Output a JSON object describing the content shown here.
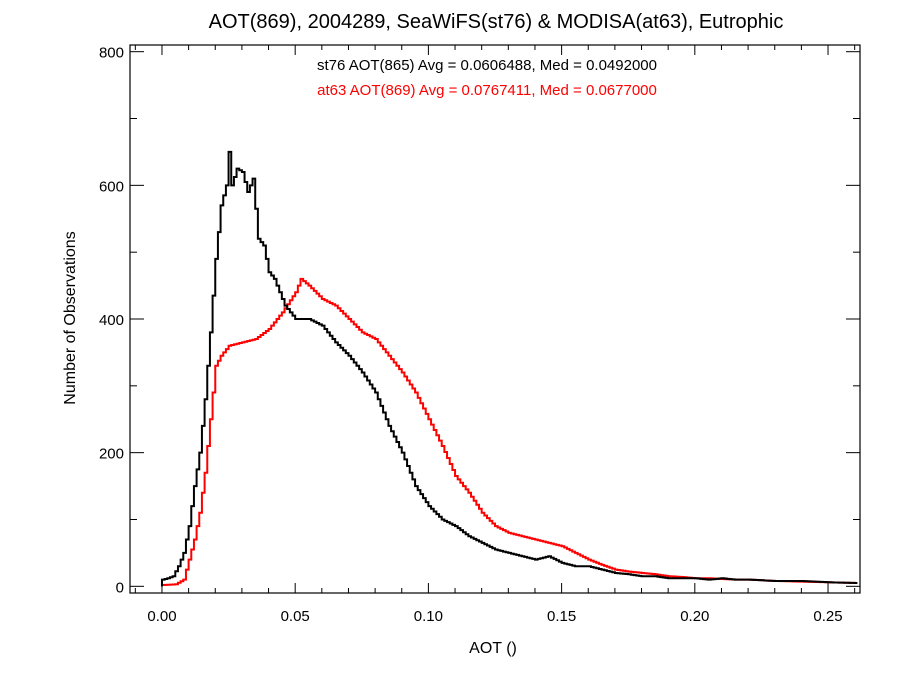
{
  "chart_data": {
    "type": "histogram",
    "title": "AOT(869), 2004289, SeaWiFS(st76) & MODISA(at63), Eutrophic",
    "xlabel": "AOT ()",
    "ylabel": "Number of Observations",
    "xlim": [
      -0.012,
      0.262
    ],
    "ylim": [
      -10,
      810
    ],
    "x_ticks": [
      0.0,
      0.05,
      0.1,
      0.15,
      0.2,
      0.25
    ],
    "x_tick_labels": [
      "0.00",
      "0.05",
      "0.10",
      "0.15",
      "0.20",
      "0.25"
    ],
    "y_ticks": [
      0,
      200,
      400,
      600,
      800
    ],
    "y_tick_labels": [
      "0",
      "200",
      "400",
      "600",
      "800"
    ],
    "bin_width": 0.001,
    "annotations": [
      {
        "text": "st76 AOT(865) Avg = 0.0606488, Med = 0.0492000",
        "color": "#000000"
      },
      {
        "text": "at63 AOT(869) Avg = 0.0767411, Med = 0.0677000",
        "color": "#ff0000"
      }
    ],
    "series": [
      {
        "color": "#000000",
        "points": [
          [
            0.0,
            10
          ],
          [
            0.002,
            12
          ],
          [
            0.004,
            15
          ],
          [
            0.006,
            30
          ],
          [
            0.008,
            50
          ],
          [
            0.01,
            90
          ],
          [
            0.012,
            150
          ],
          [
            0.014,
            200
          ],
          [
            0.016,
            280
          ],
          [
            0.018,
            380
          ],
          [
            0.02,
            490
          ],
          [
            0.022,
            570
          ],
          [
            0.024,
            600
          ],
          [
            0.025,
            650
          ],
          [
            0.026,
            600
          ],
          [
            0.028,
            625
          ],
          [
            0.03,
            620
          ],
          [
            0.032,
            590
          ],
          [
            0.034,
            610
          ],
          [
            0.036,
            520
          ],
          [
            0.038,
            510
          ],
          [
            0.04,
            470
          ],
          [
            0.042,
            460
          ],
          [
            0.044,
            440
          ],
          [
            0.046,
            420
          ],
          [
            0.048,
            410
          ],
          [
            0.05,
            400
          ],
          [
            0.055,
            400
          ],
          [
            0.06,
            390
          ],
          [
            0.065,
            365
          ],
          [
            0.07,
            345
          ],
          [
            0.075,
            320
          ],
          [
            0.08,
            290
          ],
          [
            0.085,
            240
          ],
          [
            0.09,
            200
          ],
          [
            0.095,
            150
          ],
          [
            0.1,
            120
          ],
          [
            0.105,
            100
          ],
          [
            0.11,
            90
          ],
          [
            0.115,
            75
          ],
          [
            0.12,
            65
          ],
          [
            0.125,
            55
          ],
          [
            0.13,
            50
          ],
          [
            0.135,
            45
          ],
          [
            0.14,
            40
          ],
          [
            0.145,
            45
          ],
          [
            0.15,
            35
          ],
          [
            0.155,
            30
          ],
          [
            0.16,
            30
          ],
          [
            0.165,
            25
          ],
          [
            0.17,
            20
          ],
          [
            0.175,
            18
          ],
          [
            0.18,
            15
          ],
          [
            0.185,
            15
          ],
          [
            0.19,
            12
          ],
          [
            0.195,
            12
          ],
          [
            0.2,
            12
          ],
          [
            0.205,
            10
          ],
          [
            0.21,
            12
          ],
          [
            0.215,
            10
          ],
          [
            0.22,
            10
          ],
          [
            0.23,
            8
          ],
          [
            0.24,
            8
          ],
          [
            0.25,
            6
          ],
          [
            0.26,
            5
          ]
        ]
      },
      {
        "color": "#ff0000",
        "points": [
          [
            0.0,
            2
          ],
          [
            0.005,
            3
          ],
          [
            0.008,
            10
          ],
          [
            0.01,
            40
          ],
          [
            0.012,
            70
          ],
          [
            0.014,
            110
          ],
          [
            0.016,
            170
          ],
          [
            0.018,
            250
          ],
          [
            0.02,
            330
          ],
          [
            0.022,
            345
          ],
          [
            0.025,
            360
          ],
          [
            0.03,
            365
          ],
          [
            0.035,
            370
          ],
          [
            0.04,
            385
          ],
          [
            0.045,
            410
          ],
          [
            0.05,
            440
          ],
          [
            0.052,
            460
          ],
          [
            0.055,
            450
          ],
          [
            0.06,
            430
          ],
          [
            0.065,
            420
          ],
          [
            0.07,
            400
          ],
          [
            0.075,
            380
          ],
          [
            0.08,
            370
          ],
          [
            0.085,
            345
          ],
          [
            0.09,
            320
          ],
          [
            0.095,
            290
          ],
          [
            0.1,
            250
          ],
          [
            0.105,
            210
          ],
          [
            0.11,
            165
          ],
          [
            0.115,
            140
          ],
          [
            0.12,
            110
          ],
          [
            0.125,
            90
          ],
          [
            0.13,
            80
          ],
          [
            0.135,
            75
          ],
          [
            0.14,
            70
          ],
          [
            0.145,
            65
          ],
          [
            0.15,
            60
          ],
          [
            0.155,
            50
          ],
          [
            0.16,
            40
          ],
          [
            0.165,
            32
          ],
          [
            0.17,
            25
          ],
          [
            0.175,
            22
          ],
          [
            0.18,
            20
          ],
          [
            0.185,
            18
          ],
          [
            0.19,
            15
          ],
          [
            0.195,
            14
          ],
          [
            0.2,
            12
          ],
          [
            0.205,
            12
          ],
          [
            0.21,
            11
          ],
          [
            0.215,
            10
          ],
          [
            0.22,
            10
          ],
          [
            0.23,
            8
          ],
          [
            0.24,
            7
          ],
          [
            0.25,
            6
          ],
          [
            0.26,
            5
          ]
        ]
      }
    ]
  }
}
